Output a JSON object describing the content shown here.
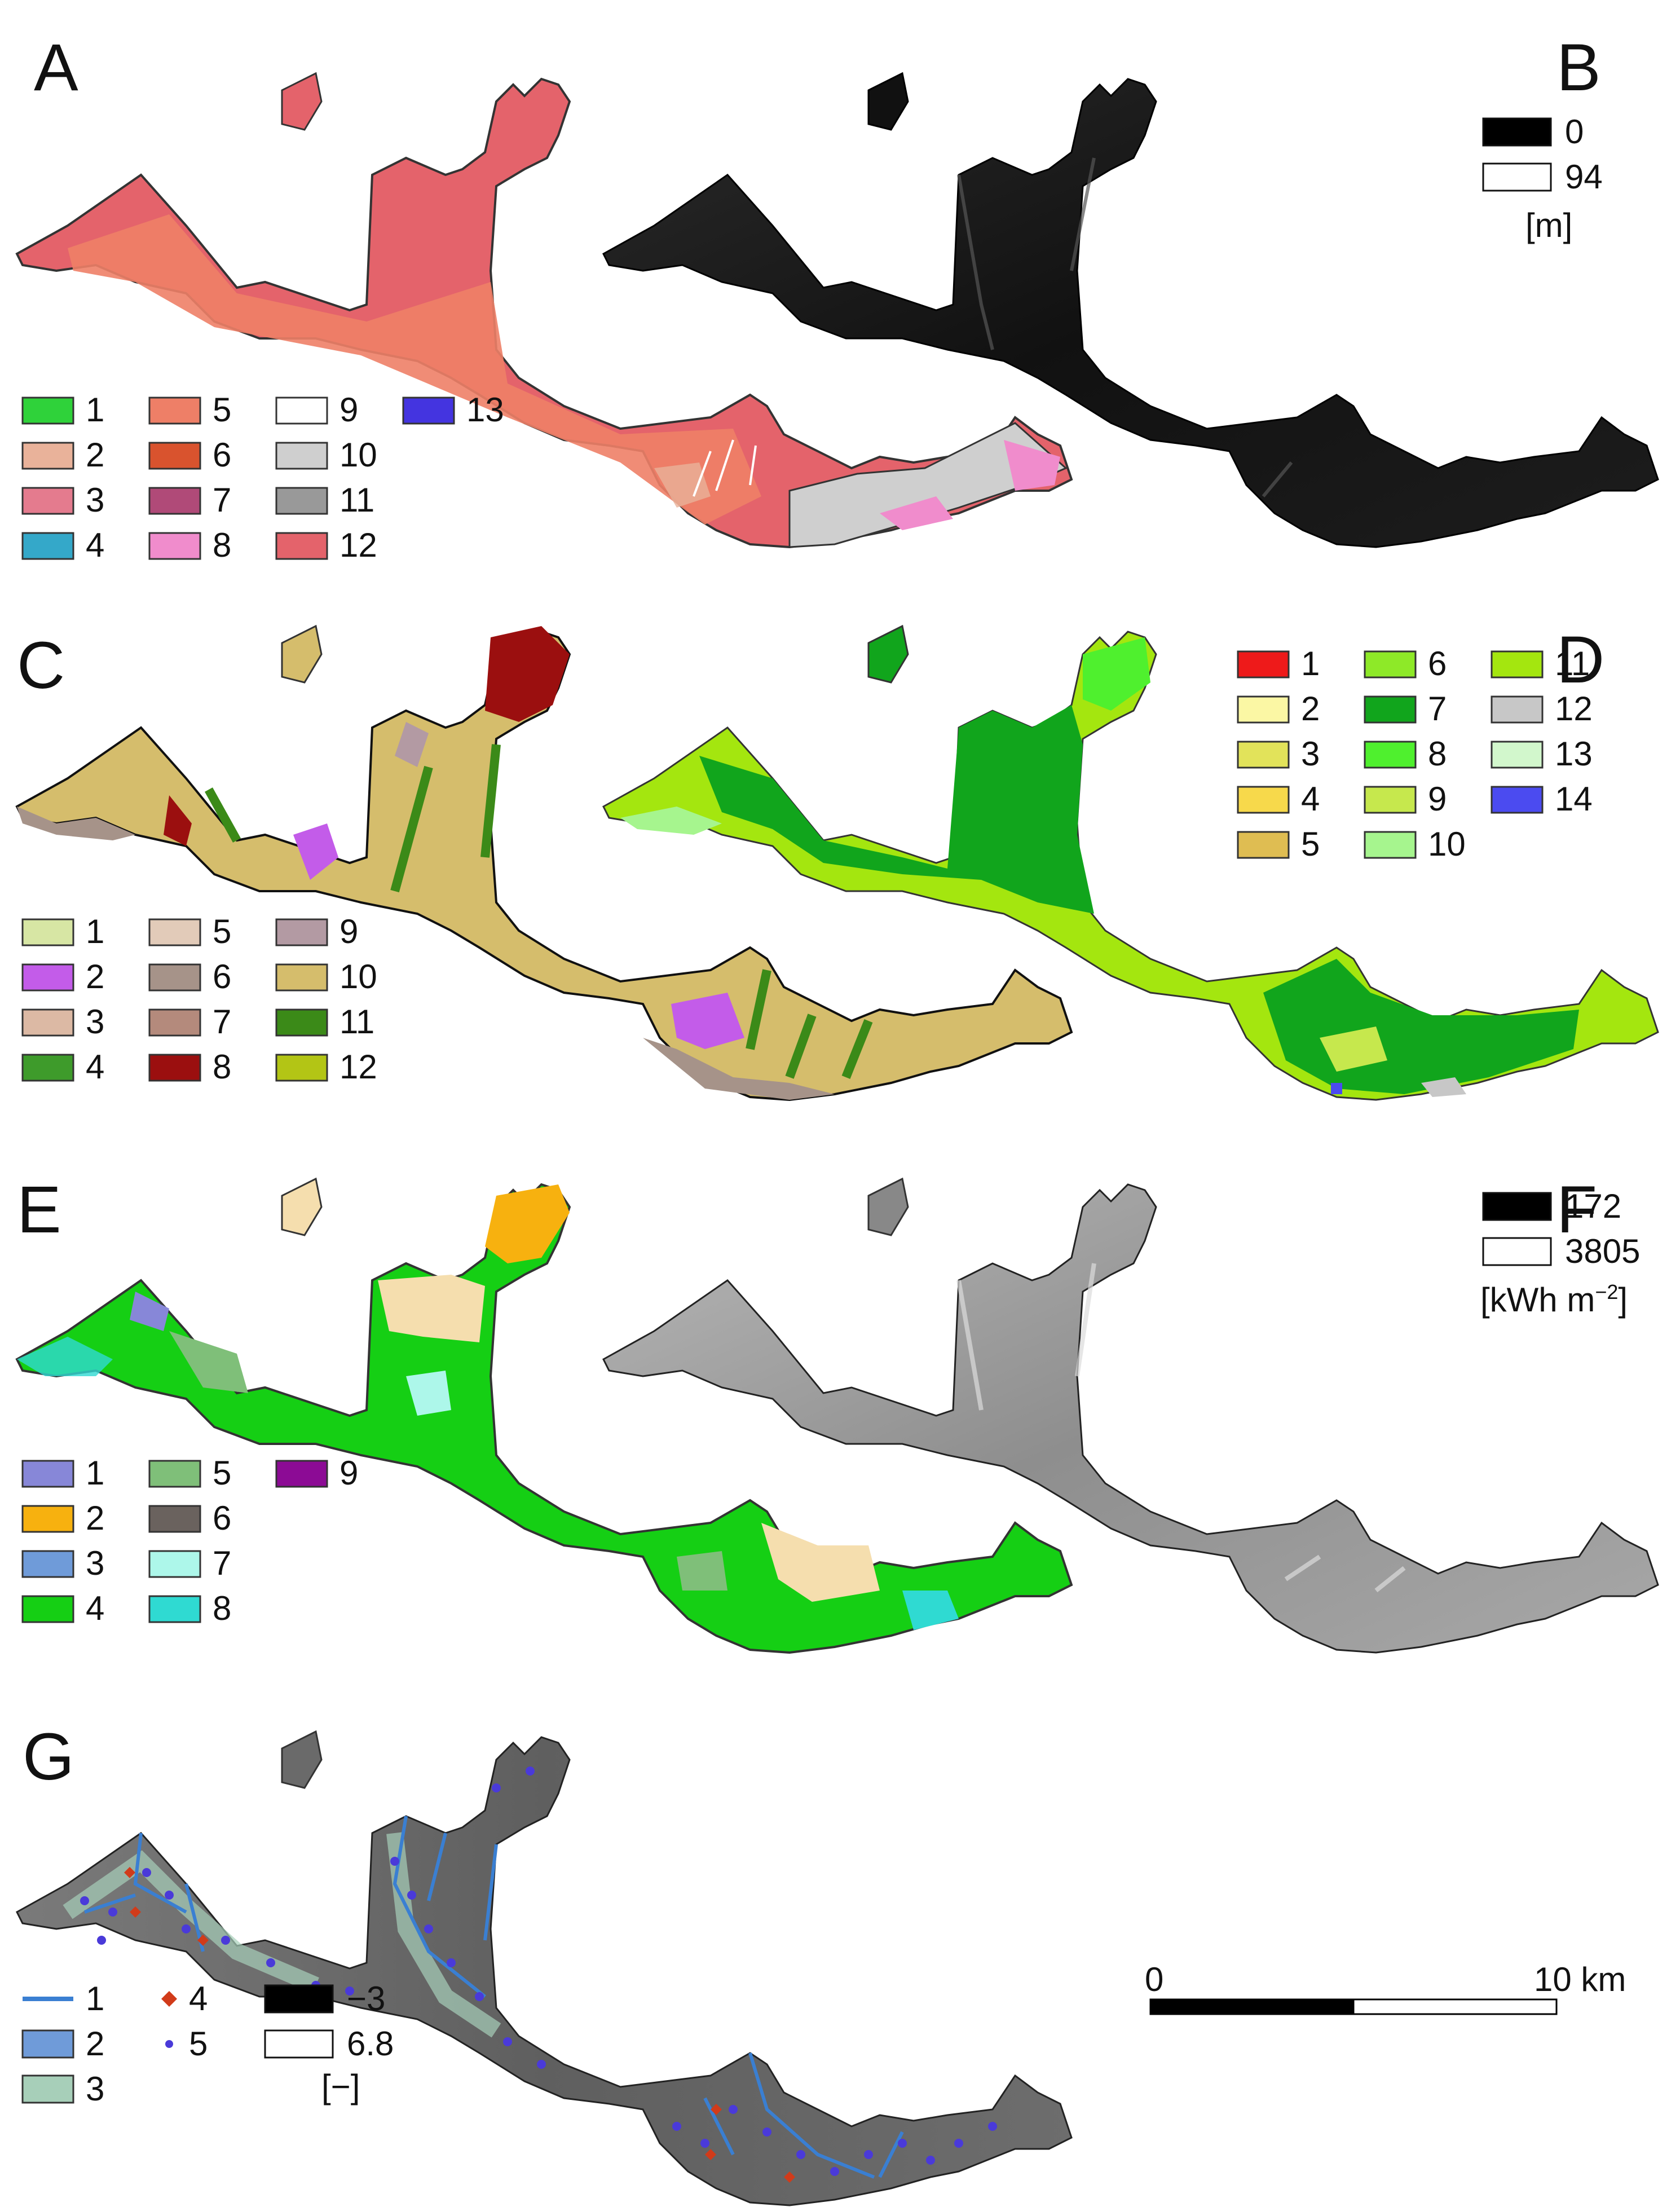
{
  "panels": {
    "A": {
      "letter": "A",
      "legend": [
        {
          "label": "1",
          "color": "#2fd23a"
        },
        {
          "label": "2",
          "color": "#e9b29a"
        },
        {
          "label": "3",
          "color": "#e47b8e"
        },
        {
          "label": "4",
          "color": "#34a8c9"
        },
        {
          "label": "5",
          "color": "#ee7f67"
        },
        {
          "label": "6",
          "color": "#d9532e"
        },
        {
          "label": "7",
          "color": "#b04a78"
        },
        {
          "label": "8",
          "color": "#f08ccc"
        },
        {
          "label": "9",
          "color": "#ffffff"
        },
        {
          "label": "10",
          "color": "#cfcfcf"
        },
        {
          "label": "11",
          "color": "#999999"
        },
        {
          "label": "12",
          "color": "#e4636b"
        },
        {
          "label": "13",
          "color": "#4434e0"
        }
      ]
    },
    "B": {
      "letter": "B",
      "ramp": [
        {
          "label": "0",
          "color": "#000000"
        },
        {
          "label": "94",
          "color": "#ffffff"
        }
      ],
      "unit": "[m]"
    },
    "C": {
      "letter": "C",
      "legend": [
        {
          "label": "1",
          "color": "#d7e6a4"
        },
        {
          "label": "2",
          "color": "#c35ce9"
        },
        {
          "label": "3",
          "color": "#dcb9a4"
        },
        {
          "label": "4",
          "color": "#3e9b2b"
        },
        {
          "label": "5",
          "color": "#e2cbb9"
        },
        {
          "label": "6",
          "color": "#a69389"
        },
        {
          "label": "7",
          "color": "#b48a7c"
        },
        {
          "label": "8",
          "color": "#9b0f0f"
        },
        {
          "label": "9",
          "color": "#b39aa3"
        },
        {
          "label": "10",
          "color": "#d5bd6c"
        },
        {
          "label": "11",
          "color": "#3b8a18"
        },
        {
          "label": "12",
          "color": "#b3c515"
        }
      ]
    },
    "D": {
      "letter": "D",
      "legend": [
        {
          "label": "1",
          "color": "#ee1a1a"
        },
        {
          "label": "2",
          "color": "#fbf7a4"
        },
        {
          "label": "3",
          "color": "#e2e35a"
        },
        {
          "label": "4",
          "color": "#f7d94b"
        },
        {
          "label": "5",
          "color": "#dfbd52"
        },
        {
          "label": "6",
          "color": "#8ee928"
        },
        {
          "label": "7",
          "color": "#11a51c"
        },
        {
          "label": "8",
          "color": "#4ff02e"
        },
        {
          "label": "9",
          "color": "#c6e84d"
        },
        {
          "label": "10",
          "color": "#a6f58e"
        },
        {
          "label": "11",
          "color": "#a4e60f"
        },
        {
          "label": "12",
          "color": "#c7c7c7"
        },
        {
          "label": "13",
          "color": "#d2f7cc"
        },
        {
          "label": "14",
          "color": "#4b4bf0"
        }
      ]
    },
    "E": {
      "letter": "E",
      "legend": [
        {
          "label": "1",
          "color": "#8787d8"
        },
        {
          "label": "2",
          "color": "#f7b10f"
        },
        {
          "label": "3",
          "color": "#6f9bd9"
        },
        {
          "label": "4",
          "color": "#15cf14"
        },
        {
          "label": "5",
          "color": "#7fbf79"
        },
        {
          "label": "6",
          "color": "#6a625e"
        },
        {
          "label": "7",
          "color": "#adf7ea"
        },
        {
          "label": "8",
          "color": "#2fdad2"
        },
        {
          "label": "9",
          "color": "#8c0b95"
        }
      ]
    },
    "F": {
      "letter": "F",
      "ramp": [
        {
          "label": "172",
          "color": "#000000"
        },
        {
          "label": "3805",
          "color": "#ffffff"
        }
      ],
      "unit_main": "[kWh m",
      "unit_sup": "−2",
      "unit_end": "]"
    },
    "G": {
      "letter": "G",
      "legend_items": [
        {
          "label": "1",
          "kind": "line",
          "color": "#3a7fd2"
        },
        {
          "label": "2",
          "kind": "box",
          "color": "#6f9bd9"
        },
        {
          "label": "3",
          "kind": "box",
          "color": "#a7cfb9"
        },
        {
          "label": "4",
          "kind": "diamond",
          "color": "#d13b1a"
        },
        {
          "label": "5",
          "kind": "dot",
          "color": "#4a3ad9"
        }
      ],
      "ramp": [
        {
          "label": "−3",
          "color": "#000000"
        },
        {
          "label": "6.8",
          "color": "#ffffff"
        }
      ],
      "unit": "[−]"
    }
  },
  "scale_bar": {
    "start_label": "0",
    "end_label": "10 km"
  }
}
